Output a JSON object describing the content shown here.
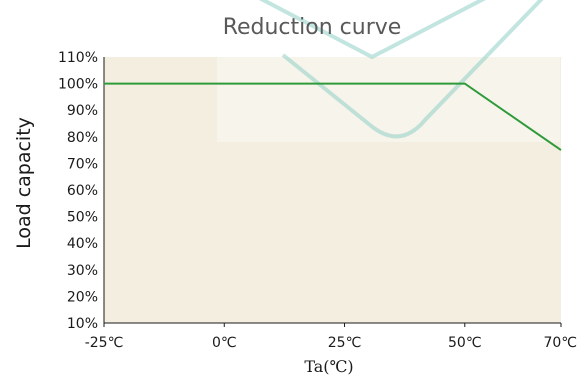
{
  "chart_data": {
    "type": "line",
    "title": "Reduction curve",
    "xlabel": "Ta(℃)",
    "ylabel": "Load capacity",
    "x_ticks": [
      "-25℃",
      "0℃",
      "25℃",
      "50℃",
      "70℃"
    ],
    "x_tick_values": [
      -25,
      0,
      25,
      50,
      70
    ],
    "y_ticks": [
      "10%",
      "20%",
      "30%",
      "40%",
      "50%",
      "60%",
      "70%",
      "80%",
      "90%",
      "100%",
      "110%"
    ],
    "xlim": [
      -25,
      70
    ],
    "ylim": [
      10,
      110
    ],
    "grid": false,
    "series": [
      {
        "x": [
          -25,
          50,
          70
        ],
        "y": [
          100,
          100,
          75
        ]
      }
    ]
  },
  "colors": {
    "plot_background": "#f3eee0",
    "line": "#2e9a3a",
    "axis": "#1a1a1a",
    "watermark": "#8fcfc7"
  }
}
